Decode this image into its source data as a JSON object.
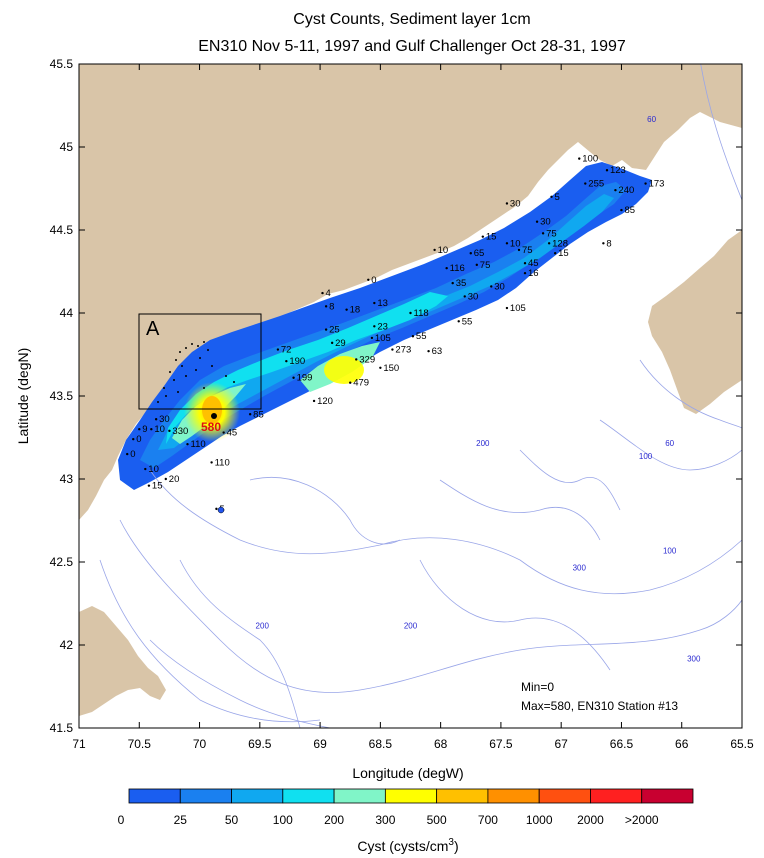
{
  "title_line1": "Cyst Counts, Sediment layer 1cm",
  "title_line2": "EN310 Nov 5-11, 1997 and Gulf Challenger Oct 28-31, 1997",
  "x_axis": {
    "label": "Longitude (degW)",
    "ticks": [
      "71",
      "70.5",
      "70",
      "69.5",
      "69",
      "68.5",
      "68",
      "67.5",
      "67",
      "66.5",
      "66",
      "65.5"
    ]
  },
  "y_axis": {
    "label": "Latitude (degN)",
    "ticks": [
      "45.5",
      "45",
      "44.5",
      "44",
      "43.5",
      "43",
      "42.5",
      "42",
      "41.5"
    ]
  },
  "colorbar": {
    "colors": [
      "#1a5ef0",
      "#1a80f0",
      "#10a8f0",
      "#10e0f0",
      "#80f5c8",
      "#ffff00",
      "#ffc000",
      "#ff9000",
      "#ff5010",
      "#ff2020",
      "#c80030"
    ],
    "tick_labels": [
      "0",
      "25",
      "50",
      "100",
      "200",
      "300",
      "500",
      "700",
      "1000",
      "2000",
      ">2000"
    ],
    "label": "Cyst (cysts/cm",
    "label_sup": "3",
    "label_close": ")"
  },
  "box_label": "A",
  "max_marker_label": "580",
  "stations": [
    {
      "lon": 66.85,
      "lat": 44.93,
      "v": "100"
    },
    {
      "lon": 66.62,
      "lat": 44.86,
      "v": "123"
    },
    {
      "lon": 66.8,
      "lat": 44.78,
      "v": "255"
    },
    {
      "lon": 66.55,
      "lat": 44.74,
      "v": "240"
    },
    {
      "lon": 66.3,
      "lat": 44.78,
      "v": "173"
    },
    {
      "lon": 67.08,
      "lat": 44.7,
      "v": "5"
    },
    {
      "lon": 67.45,
      "lat": 44.66,
      "v": "30"
    },
    {
      "lon": 66.5,
      "lat": 44.62,
      "v": "85"
    },
    {
      "lon": 67.2,
      "lat": 44.55,
      "v": "30"
    },
    {
      "lon": 67.15,
      "lat": 44.48,
      "v": "75"
    },
    {
      "lon": 67.1,
      "lat": 44.42,
      "v": "128"
    },
    {
      "lon": 67.05,
      "lat": 44.36,
      "v": "15"
    },
    {
      "lon": 66.65,
      "lat": 44.42,
      "v": "8"
    },
    {
      "lon": 67.65,
      "lat": 44.46,
      "v": "15"
    },
    {
      "lon": 67.45,
      "lat": 44.42,
      "v": "10"
    },
    {
      "lon": 67.35,
      "lat": 44.38,
      "v": "75"
    },
    {
      "lon": 67.3,
      "lat": 44.3,
      "v": "45"
    },
    {
      "lon": 67.3,
      "lat": 44.24,
      "v": "16"
    },
    {
      "lon": 68.05,
      "lat": 44.38,
      "v": "10"
    },
    {
      "lon": 67.75,
      "lat": 44.36,
      "v": "65"
    },
    {
      "lon": 67.7,
      "lat": 44.29,
      "v": "75"
    },
    {
      "lon": 67.95,
      "lat": 44.27,
      "v": "116"
    },
    {
      "lon": 67.9,
      "lat": 44.18,
      "v": "35"
    },
    {
      "lon": 67.58,
      "lat": 44.16,
      "v": "30"
    },
    {
      "lon": 67.8,
      "lat": 44.1,
      "v": "30"
    },
    {
      "lon": 67.45,
      "lat": 44.03,
      "v": "105"
    },
    {
      "lon": 67.85,
      "lat": 43.95,
      "v": "55"
    },
    {
      "lon": 68.6,
      "lat": 44.2,
      "v": "0"
    },
    {
      "lon": 68.98,
      "lat": 44.12,
      "v": "4"
    },
    {
      "lon": 68.95,
      "lat": 44.04,
      "v": "8"
    },
    {
      "lon": 68.55,
      "lat": 44.06,
      "v": "13"
    },
    {
      "lon": 68.78,
      "lat": 44.02,
      "v": "18"
    },
    {
      "lon": 68.25,
      "lat": 44.0,
      "v": "118"
    },
    {
      "lon": 68.55,
      "lat": 43.92,
      "v": "23"
    },
    {
      "lon": 68.95,
      "lat": 43.9,
      "v": "25"
    },
    {
      "lon": 68.57,
      "lat": 43.85,
      "v": "105"
    },
    {
      "lon": 68.23,
      "lat": 43.86,
      "v": "55"
    },
    {
      "lon": 68.9,
      "lat": 43.82,
      "v": "29"
    },
    {
      "lon": 68.4,
      "lat": 43.78,
      "v": "273"
    },
    {
      "lon": 68.1,
      "lat": 43.77,
      "v": "63"
    },
    {
      "lon": 68.7,
      "lat": 43.72,
      "v": "329"
    },
    {
      "lon": 69.35,
      "lat": 43.78,
      "v": "72"
    },
    {
      "lon": 69.28,
      "lat": 43.71,
      "v": "190"
    },
    {
      "lon": 68.5,
      "lat": 43.67,
      "v": "150"
    },
    {
      "lon": 69.22,
      "lat": 43.61,
      "v": "199"
    },
    {
      "lon": 68.75,
      "lat": 43.58,
      "v": "479"
    },
    {
      "lon": 69.05,
      "lat": 43.47,
      "v": "120"
    },
    {
      "lon": 69.58,
      "lat": 43.39,
      "v": "85"
    },
    {
      "lon": 70.36,
      "lat": 43.36,
      "v": "30"
    },
    {
      "lon": 70.5,
      "lat": 43.3,
      "v": "9"
    },
    {
      "lon": 70.4,
      "lat": 43.3,
      "v": "10"
    },
    {
      "lon": 70.25,
      "lat": 43.29,
      "v": "330"
    },
    {
      "lon": 69.8,
      "lat": 43.28,
      "v": "45"
    },
    {
      "lon": 70.55,
      "lat": 43.24,
      "v": "0"
    },
    {
      "lon": 70.1,
      "lat": 43.21,
      "v": "110"
    },
    {
      "lon": 70.6,
      "lat": 43.15,
      "v": "0"
    },
    {
      "lon": 69.9,
      "lat": 43.1,
      "v": "110"
    },
    {
      "lon": 70.45,
      "lat": 43.06,
      "v": "10"
    },
    {
      "lon": 70.28,
      "lat": 43.0,
      "v": "20"
    },
    {
      "lon": 70.42,
      "lat": 42.96,
      "v": "15"
    },
    {
      "lon": 69.86,
      "lat": 42.82,
      "v": "5"
    }
  ],
  "depth_labels": [
    {
      "lon": 66.25,
      "lat": 45.15,
      "v": "60"
    },
    {
      "lon": 67.65,
      "lat": 43.2,
      "v": "200"
    },
    {
      "lon": 66.1,
      "lat": 43.2,
      "v": "60"
    },
    {
      "lon": 66.3,
      "lat": 43.12,
      "v": "100"
    },
    {
      "lon": 66.85,
      "lat": 42.45,
      "v": "300"
    },
    {
      "lon": 66.1,
      "lat": 42.55,
      "v": "100"
    },
    {
      "lon": 69.48,
      "lat": 42.1,
      "v": "200"
    },
    {
      "lon": 68.25,
      "lat": 42.1,
      "v": "200"
    },
    {
      "lon": 65.9,
      "lat": 41.9,
      "v": "300"
    }
  ],
  "min_text": "Min=0",
  "max_text": "Max=580, EN310 Station #13"
}
